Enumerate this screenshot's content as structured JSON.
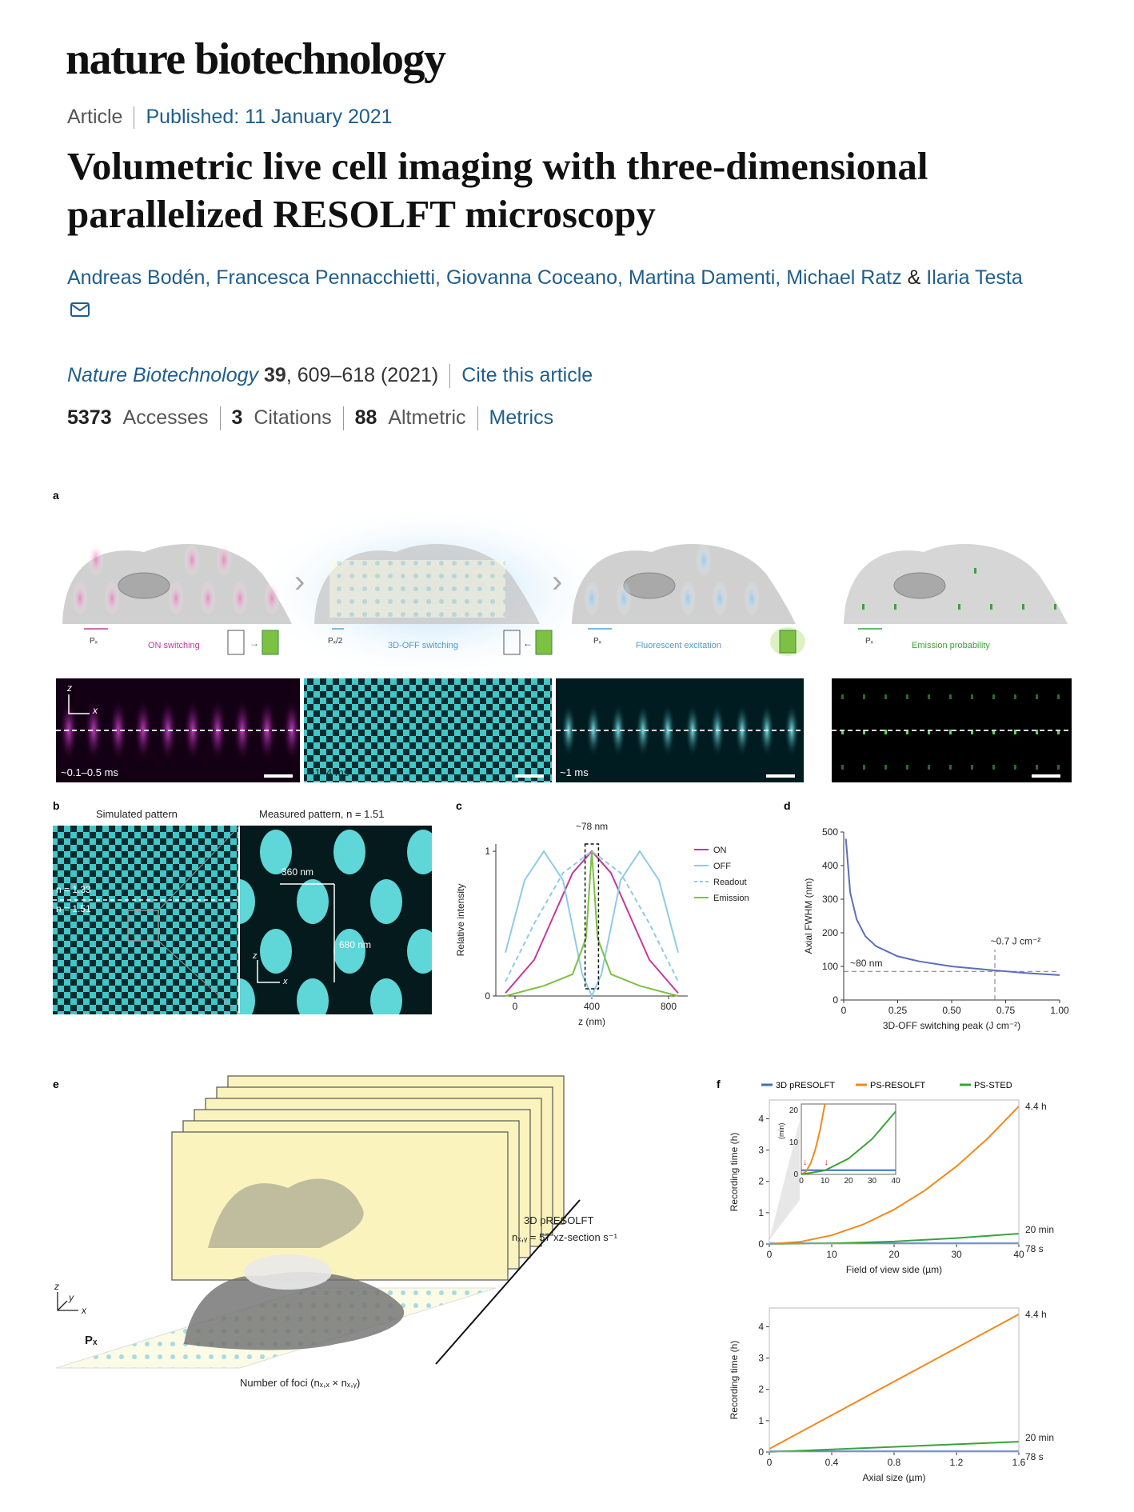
{
  "header": {
    "journal": "nature biotechnology",
    "type": "Article",
    "published": "Published: 11 January 2021"
  },
  "article": {
    "title_line1": "Volumetric live cell imaging with three-dimensional",
    "title_line2": "parallelized RESOLFT microscopy",
    "authors": [
      "Andreas Bodén",
      "Francesca Pennacchietti",
      "Giovanna Coceano",
      "Martina Damenti",
      "Michael Ratz"
    ],
    "last_author": "Ilaria Testa",
    "amp": "&",
    "journal_name": "Nature Biotechnology",
    "volume": "39",
    "pages": ", 609–618 (2021)",
    "cite": "Cite this article"
  },
  "metrics": {
    "accesses_value": "5373",
    "accesses_label": "Accesses",
    "citations_value": "3",
    "citations_label": "Citations",
    "altmetric_value": "88",
    "altmetric_label": "Altmetric",
    "metrics_link": "Metrics"
  },
  "figure": {
    "panel_a": {
      "label": "a",
      "steps": [
        "ON switching",
        "3D-OFF switching",
        "Fluorescent excitation",
        "Emission probability"
      ],
      "period_labels": [
        "Pₓ",
        "Pₓ/2",
        "Pₓ",
        "Pₓ"
      ],
      "times": [
        "~0.1–0.5 ms",
        "~1–4 ms",
        "~1 ms"
      ],
      "axis_z": "z",
      "axis_x": "x",
      "colors": {
        "on": "#c23a9a",
        "off": "#4fc3d6",
        "readout": "#4fc3d6",
        "emission": "#7dc142"
      }
    },
    "panel_b": {
      "label": "b",
      "sim_title": "Simulated pattern",
      "meas_title": "Measured pattern, n = 1.51",
      "n1": "n = 1.33",
      "n2": "n = 1.51",
      "dim1": "360 nm",
      "dim2": "680 nm",
      "axis_z": "z",
      "axis_x": "x"
    },
    "panel_c": {
      "label": "c",
      "annotation": "~78 nm",
      "xlabel": "z (nm)",
      "ylabel": "Relative intensity",
      "legend": [
        "ON",
        "OFF",
        "Readout",
        "Emission"
      ],
      "xticks": [
        "0",
        "400",
        "800"
      ],
      "yticks": [
        "0",
        "1"
      ]
    },
    "panel_d": {
      "label": "d",
      "xlabel": "3D-OFF switching peak (J cm⁻²)",
      "ylabel": "Axial FWHM (nm)",
      "annotation1": "~0.7 J cm⁻²",
      "annotation2": "~80 nm",
      "xticks": [
        "0",
        "0.25",
        "0.50",
        "0.75",
        "1.00"
      ],
      "yticks": [
        "0",
        "100",
        "200",
        "300",
        "400",
        "500"
      ]
    },
    "panel_e": {
      "label": "e",
      "method": "3D pRESOLFT",
      "rate": "nₓ,ᵧ = 57 xz-section s⁻¹",
      "foci": "Number of foci (nₓ,ₓ × nₓ,ᵧ)",
      "pf": "Pₓ",
      "axis_z": "z",
      "axis_y": "y",
      "axis_x": "x"
    },
    "panel_f": {
      "label": "f",
      "legend": [
        "3D pRESOLFT",
        "PS-RESOLFT",
        "PS-STED"
      ],
      "colors": [
        "#3c6fc4",
        "#f08a1c",
        "#3aa33a"
      ],
      "top_xlabel": "Field of view side (µm)",
      "bottom_xlabel": "Axial size (µm)",
      "ylabel": "Recording time (h)",
      "inset_ylabel": "(min)",
      "end_labels": [
        "4.4 h",
        "20 min",
        "78 s"
      ],
      "top_xticks": [
        "0",
        "10",
        "20",
        "30",
        "40"
      ],
      "bottom_xticks": [
        "0",
        "0.4",
        "0.8",
        "1.2",
        "1.6"
      ],
      "yticks": [
        "0",
        "1",
        "2",
        "3",
        "4"
      ],
      "inset_xticks": [
        "0",
        "10",
        "20",
        "30",
        "40"
      ],
      "inset_yticks": [
        "0",
        "10",
        "20"
      ]
    }
  },
  "chart_data": [
    {
      "type": "line",
      "panel": "c",
      "xlabel": "z (nm)",
      "ylabel": "Relative intensity",
      "xlim": [
        -100,
        900
      ],
      "ylim": [
        0,
        1.05
      ],
      "series": [
        {
          "name": "ON",
          "x": [
            -50,
            100,
            200,
            300,
            400,
            500,
            600,
            700,
            850
          ],
          "values": [
            0.02,
            0.25,
            0.55,
            0.85,
            1.0,
            0.85,
            0.55,
            0.25,
            0.02
          ]
        },
        {
          "name": "OFF",
          "x": [
            -50,
            50,
            150,
            250,
            350,
            400,
            450,
            550,
            650,
            750,
            850
          ],
          "values": [
            0.3,
            0.8,
            1.0,
            0.8,
            0.15,
            0.0,
            0.15,
            0.8,
            1.0,
            0.8,
            0.3
          ]
        },
        {
          "name": "Readout",
          "x": [
            -50,
            100,
            250,
            400,
            550,
            700,
            850
          ],
          "values": [
            0.1,
            0.5,
            0.85,
            1.0,
            0.85,
            0.5,
            0.1
          ]
        },
        {
          "name": "Emission",
          "x": [
            -50,
            150,
            300,
            370,
            400,
            430,
            500,
            650,
            850
          ],
          "values": [
            0.0,
            0.07,
            0.15,
            0.4,
            1.0,
            0.4,
            0.15,
            0.07,
            0.0
          ]
        }
      ]
    },
    {
      "type": "line",
      "panel": "d",
      "xlabel": "3D-OFF switching peak (J cm⁻²)",
      "ylabel": "Axial FWHM (nm)",
      "xlim": [
        0,
        1.0
      ],
      "ylim": [
        0,
        500
      ],
      "series": [
        {
          "name": "",
          "x": [
            0.01,
            0.03,
            0.06,
            0.1,
            0.15,
            0.25,
            0.35,
            0.5,
            0.7,
            0.85,
            1.0
          ],
          "values": [
            480,
            320,
            240,
            190,
            160,
            130,
            115,
            100,
            88,
            80,
            74
          ]
        }
      ]
    },
    {
      "type": "line",
      "panel": "f-top",
      "xlabel": "Field of view side (µm)",
      "ylabel": "Recording time (h)",
      "xlim": [
        0,
        40
      ],
      "ylim": [
        0,
        4.6
      ],
      "series": [
        {
          "name": "3D pRESOLFT",
          "x": [
            0,
            10,
            20,
            30,
            40
          ],
          "values": [
            0.02,
            0.02,
            0.02,
            0.02,
            0.02
          ]
        },
        {
          "name": "PS-RESOLFT",
          "x": [
            0,
            5,
            10,
            15,
            20,
            25,
            30,
            35,
            40
          ],
          "values": [
            0,
            0.07,
            0.28,
            0.62,
            1.1,
            1.72,
            2.48,
            3.37,
            4.4
          ]
        },
        {
          "name": "PS-STED",
          "x": [
            0,
            10,
            20,
            30,
            40
          ],
          "values": [
            0,
            0.02,
            0.08,
            0.19,
            0.33
          ]
        }
      ]
    },
    {
      "type": "line",
      "panel": "f-bottom",
      "xlabel": "Axial size (µm)",
      "ylabel": "Recording time (h)",
      "xlim": [
        0,
        1.6
      ],
      "ylim": [
        0,
        4.6
      ],
      "series": [
        {
          "name": "3D pRESOLFT",
          "x": [
            0,
            1.6
          ],
          "values": [
            0.02,
            0.02
          ]
        },
        {
          "name": "PS-RESOLFT",
          "x": [
            0,
            1.6
          ],
          "values": [
            0.1,
            4.4
          ]
        },
        {
          "name": "PS-STED",
          "x": [
            0,
            1.6
          ],
          "values": [
            0.0,
            0.33
          ]
        }
      ]
    }
  ]
}
